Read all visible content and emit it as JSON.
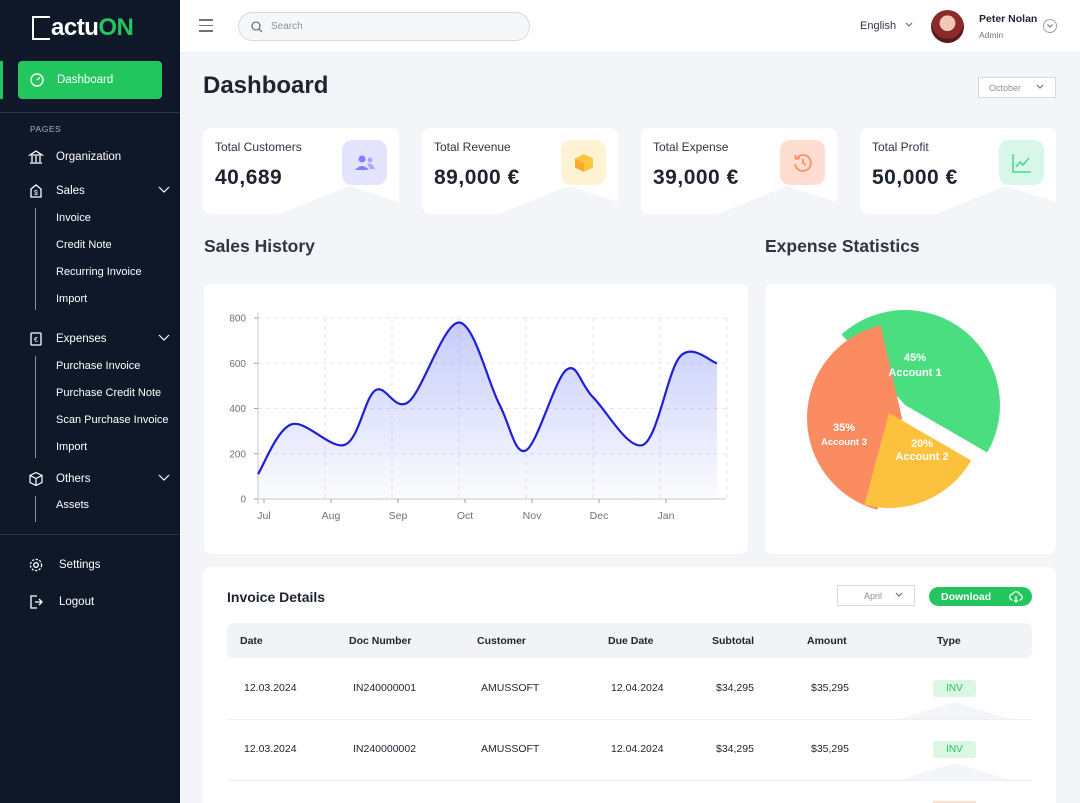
{
  "brand": {
    "logo_main": "actu",
    "logo_accent": "ON"
  },
  "sidebar": {
    "active": "Dashboard",
    "section_label": "PAGES",
    "items": {
      "organization": "Organization",
      "sales": "Sales",
      "invoice": "Invoice",
      "credit_note": "Credit Note",
      "recurring_invoice": "Recurring Invoice",
      "import1": "Import",
      "expenses": "Expenses",
      "purchase_invoice": "Purchase Invoice",
      "purchase_credit_note": "Purchase Credit Note",
      "scan_purchase_invoice": "Scan Purchase Invoice",
      "import2": "Import",
      "others": "Others",
      "assets": "Assets",
      "settings": "Settings",
      "logout": "Logout"
    }
  },
  "topbar": {
    "search_placeholder": "Search",
    "language": "English",
    "user_name": "Peter Nolan",
    "user_role": "Admin"
  },
  "page": {
    "title": "Dashboard",
    "month": "October"
  },
  "stats": [
    {
      "label": "Total Customers",
      "value": "40,689",
      "icon": "users-icon",
      "color": "#e5e4ff"
    },
    {
      "label": "Total Revenue",
      "value": "89,000 €",
      "icon": "box-icon",
      "color": "#fff3d6"
    },
    {
      "label": "Total Expense",
      "value": "39,000 €",
      "icon": "history-icon",
      "color": "#ffded1"
    },
    {
      "label": "Total Profit",
      "value": "50,000 €",
      "icon": "chart-line-icon",
      "color": "#d9f7e8"
    }
  ],
  "sections": {
    "sales_history": "Sales History",
    "expense_statistics": "Expense Statistics"
  },
  "chart_data": [
    {
      "type": "line",
      "x": [
        "Jul",
        "Aug",
        "Sep",
        "Oct",
        "Nov",
        "Dec",
        "Jan"
      ],
      "y_ticks": [
        0,
        200,
        400,
        600,
        800
      ],
      "ylim": [
        0,
        800
      ],
      "points": [
        [
          0,
          110
        ],
        [
          0.5,
          330
        ],
        [
          1.3,
          240
        ],
        [
          1.75,
          480
        ],
        [
          2.25,
          430
        ],
        [
          3.0,
          780
        ],
        [
          3.6,
          420
        ],
        [
          4.0,
          215
        ],
        [
          4.6,
          570
        ],
        [
          5.0,
          450
        ],
        [
          5.75,
          240
        ],
        [
          6.3,
          630
        ],
        [
          6.85,
          600
        ]
      ],
      "color": "#1f1fd8"
    },
    {
      "type": "pie",
      "slices": [
        {
          "label": "Account 1",
          "pct": "45%",
          "value": 45,
          "color": "#4ade80"
        },
        {
          "label": "Account 2",
          "pct": "20%",
          "value": 20,
          "color": "#fcc13d"
        },
        {
          "label": "Account 3",
          "pct": "35%",
          "value": 35,
          "color": "#fb8c62"
        }
      ]
    }
  ],
  "invoice": {
    "title": "Invoice Details",
    "month": "April",
    "download": "Download",
    "headers": [
      "Date",
      "Doc Number",
      "Customer",
      "Due Date",
      "Subtotal",
      "Amount",
      "Type"
    ],
    "rows": [
      [
        "12.03.2024",
        "IN240000001",
        "AMUSSOFT",
        "12.04.2024",
        "$34,295",
        "$35,295",
        "INV"
      ],
      [
        "12.03.2024",
        "IN240000002",
        "AMUSSOFT",
        "12.04.2024",
        "$34,295",
        "$35,295",
        "INV"
      ]
    ]
  }
}
